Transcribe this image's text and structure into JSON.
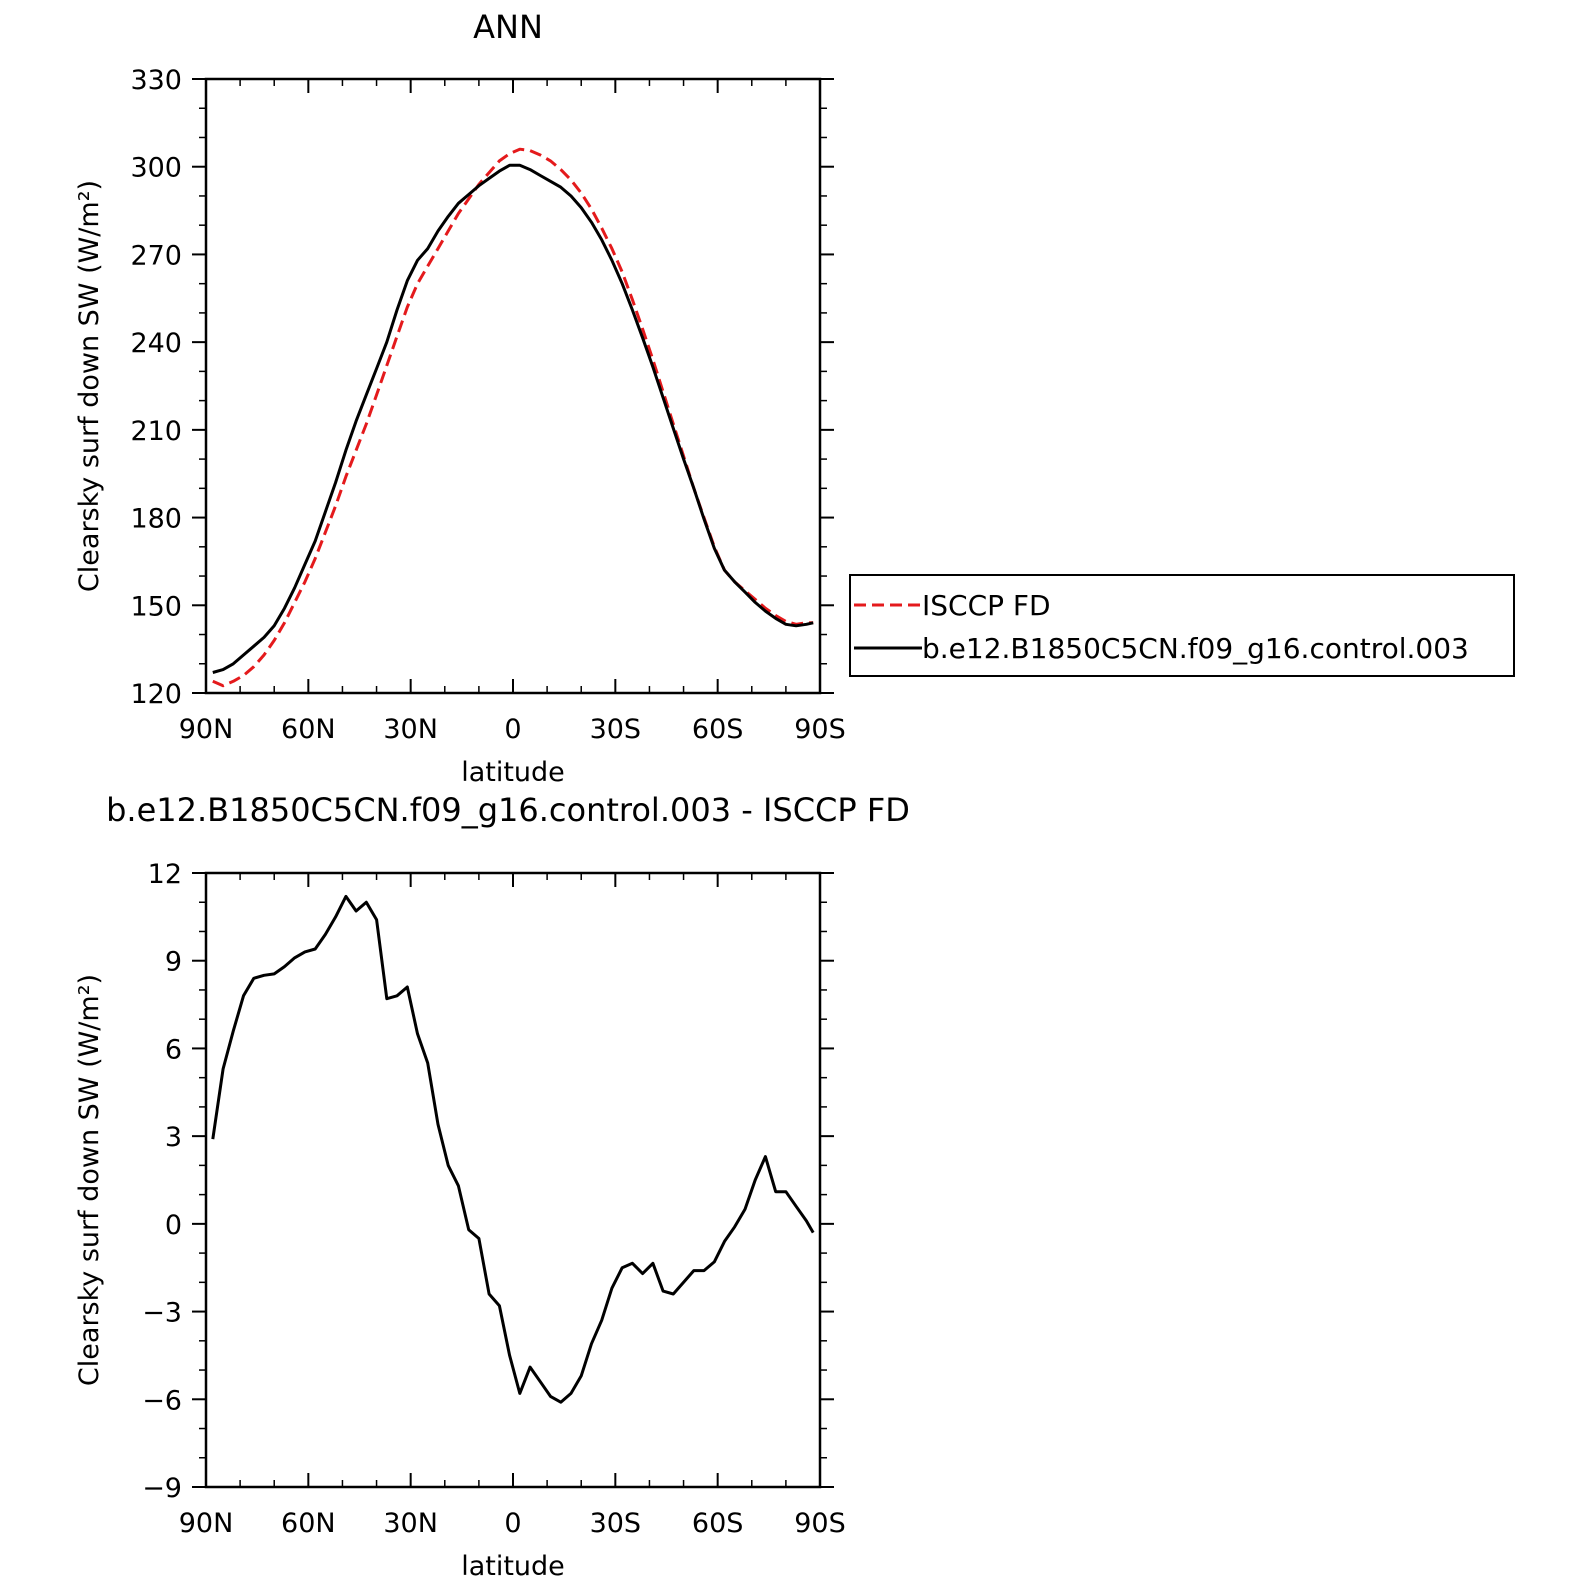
{
  "chart_data": [
    {
      "type": "line",
      "title": "ANN",
      "xlabel": "latitude",
      "ylabel": "Clearsky surf down SW (W/m²)",
      "xlim": [
        -90,
        90
      ],
      "ylim": [
        120,
        330
      ],
      "x_tick_values": [
        -90,
        -60,
        -30,
        0,
        30,
        60,
        90
      ],
      "x_tick_labels": [
        "90N",
        "60N",
        "30N",
        "0",
        "30S",
        "60S",
        "90S"
      ],
      "y_ticks": [
        120,
        150,
        180,
        210,
        240,
        270,
        300,
        330
      ],
      "grid": false,
      "legend": {
        "position": "right",
        "entries": [
          "ISCCP FD",
          "b.e12.B1850C5CN.f09_g16.control.003"
        ]
      },
      "series": [
        {
          "name": "ISCCP FD",
          "color": "#e41a1c",
          "dash": true,
          "x": [
            -88,
            -85,
            -82,
            -79,
            -76,
            -73,
            -70,
            -67,
            -64,
            -61,
            -58,
            -55,
            -52,
            -49,
            -46,
            -43,
            -40,
            -37,
            -34,
            -31,
            -28,
            -25,
            -22,
            -19,
            -16,
            -13,
            -10,
            -7,
            -4,
            -1,
            2,
            5,
            8,
            11,
            14,
            17,
            20,
            23,
            26,
            29,
            32,
            35,
            38,
            41,
            44,
            47,
            50,
            53,
            56,
            59,
            62,
            65,
            68,
            71,
            74,
            77,
            80,
            83,
            86,
            88
          ],
          "y": [
            124,
            122.5,
            124,
            126,
            129,
            133,
            138,
            144,
            151,
            158,
            166,
            175,
            184,
            194,
            203,
            212,
            222,
            232,
            242,
            252,
            260,
            266,
            272,
            278,
            284,
            289,
            294,
            298,
            302,
            304.5,
            306,
            305.5,
            304,
            302,
            299,
            295.5,
            291,
            285.5,
            279,
            272,
            264,
            254.5,
            244.5,
            234,
            223,
            212,
            201,
            190,
            180,
            170,
            162,
            158,
            155,
            152,
            149,
            146.5,
            144.5,
            143.5,
            144,
            144
          ]
        },
        {
          "name": "b.e12.B1850C5CN.f09_g16.control.003",
          "color": "#000000",
          "dash": false,
          "x": [
            -88,
            -85,
            -82,
            -79,
            -76,
            -73,
            -70,
            -67,
            -64,
            -61,
            -58,
            -55,
            -52,
            -49,
            -46,
            -43,
            -40,
            -37,
            -34,
            -31,
            -28,
            -25,
            -22,
            -19,
            -16,
            -13,
            -10,
            -7,
            -4,
            -1,
            2,
            5,
            8,
            11,
            14,
            17,
            20,
            23,
            26,
            29,
            32,
            35,
            38,
            41,
            44,
            47,
            50,
            53,
            56,
            59,
            62,
            65,
            68,
            71,
            74,
            77,
            80,
            83,
            86,
            88
          ],
          "y": [
            127,
            128,
            130,
            133,
            136,
            139,
            143,
            149,
            156,
            164,
            172,
            182,
            192,
            203,
            213,
            222,
            231,
            240,
            251,
            261,
            268,
            272,
            278,
            283,
            287.5,
            290.5,
            293.5,
            296,
            298.5,
            300.5,
            300.5,
            299,
            297,
            295,
            293,
            290,
            286,
            281,
            275,
            268,
            260,
            251,
            241.5,
            231.5,
            221,
            210.5,
            200,
            190,
            179.5,
            169.5,
            162,
            158,
            154.5,
            151,
            148,
            145.5,
            143.5,
            143,
            143.5,
            144
          ]
        }
      ]
    },
    {
      "type": "line",
      "title": "b.e12.B1850C5CN.f09_g16.control.003 - ISCCP FD",
      "xlabel": "latitude",
      "ylabel": "Clearsky surf down SW (W/m²)",
      "xlim": [
        -90,
        90
      ],
      "ylim": [
        -9,
        12
      ],
      "x_tick_values": [
        -90,
        -60,
        -30,
        0,
        30,
        60,
        90
      ],
      "x_tick_labels": [
        "90N",
        "60N",
        "30N",
        "0",
        "30S",
        "60S",
        "90S"
      ],
      "y_ticks": [
        -9,
        -6,
        -3,
        0,
        3,
        6,
        9,
        12
      ],
      "y_tick_labels": [
        "−9",
        "−6",
        "−3",
        "0",
        "3",
        "6",
        "9",
        "12"
      ],
      "grid": false,
      "series": [
        {
          "color": "#000000",
          "dash": false,
          "x": [
            -88,
            -85,
            -82,
            -79,
            -76,
            -73,
            -70,
            -67,
            -64,
            -61,
            -58,
            -55,
            -52,
            -49,
            -46,
            -43,
            -40,
            -37,
            -34,
            -31,
            -28,
            -25,
            -22,
            -19,
            -16,
            -13,
            -10,
            -7,
            -4,
            -1,
            2,
            5,
            8,
            11,
            14,
            17,
            20,
            23,
            26,
            29,
            32,
            35,
            38,
            41,
            44,
            47,
            50,
            53,
            56,
            59,
            62,
            65,
            68,
            71,
            74,
            77,
            80,
            83,
            86,
            88
          ],
          "y": [
            2.9,
            5.3,
            6.6,
            7.8,
            8.4,
            8.5,
            8.55,
            8.8,
            9.1,
            9.3,
            9.4,
            9.9,
            10.5,
            11.2,
            10.7,
            11.0,
            10.4,
            7.7,
            7.8,
            8.1,
            6.5,
            5.5,
            3.4,
            2.0,
            1.3,
            -0.2,
            -0.5,
            -2.4,
            -2.8,
            -4.5,
            -5.8,
            -4.9,
            -5.4,
            -5.9,
            -6.1,
            -5.8,
            -5.2,
            -4.1,
            -3.3,
            -2.2,
            -1.5,
            -1.35,
            -1.7,
            -1.35,
            -2.3,
            -2.4,
            -2.0,
            -1.6,
            -1.6,
            -1.3,
            -0.6,
            -0.1,
            0.5,
            1.5,
            2.3,
            1.1,
            1.1,
            0.6,
            0.1,
            -0.3
          ]
        }
      ]
    }
  ]
}
